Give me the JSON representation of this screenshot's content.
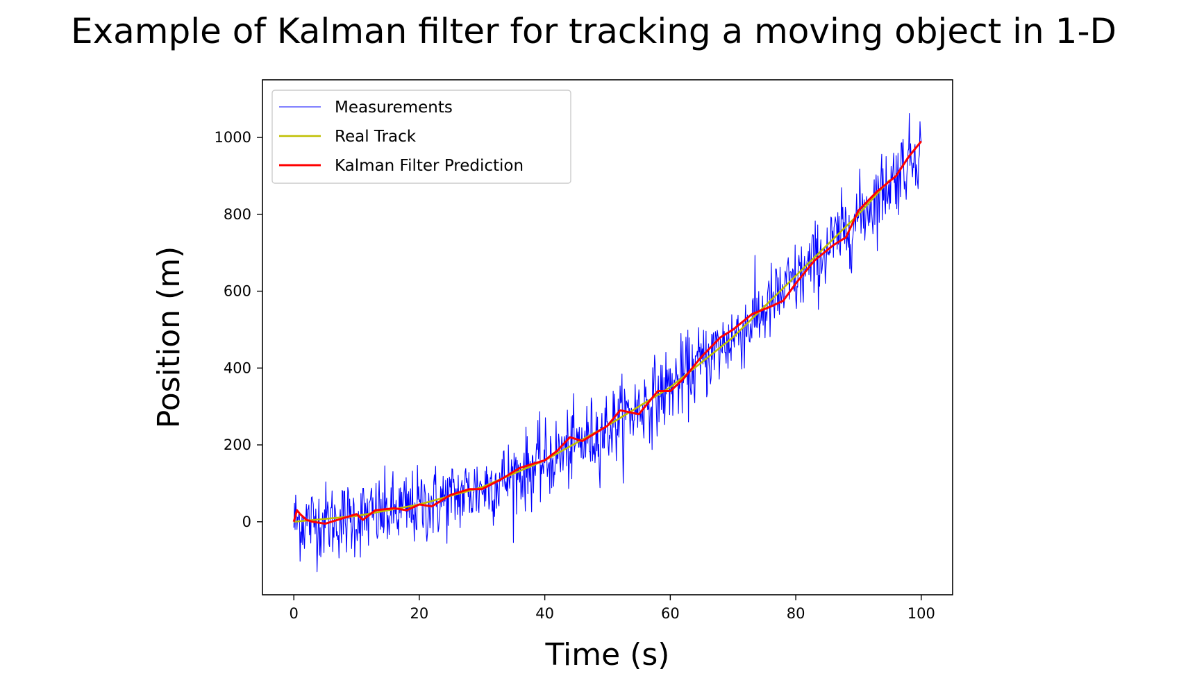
{
  "chart_data": {
    "type": "line",
    "title": "Example of Kalman filter for tracking a moving object in 1-D",
    "xlabel": "Time (s)",
    "ylabel": "Position (m)",
    "xlim": [
      -5,
      105
    ],
    "ylim": [
      -190,
      1150
    ],
    "xticks": [
      0,
      20,
      40,
      60,
      80,
      100
    ],
    "yticks": [
      0,
      200,
      400,
      600,
      800,
      1000
    ],
    "grid": false,
    "legend_position": "upper-left",
    "measurements_sampling": {
      "t_start": 0,
      "t_end": 100,
      "step": 0.1,
      "noise_std_approx": 50,
      "min_shown": -130,
      "max_shown": 1090
    },
    "series": [
      {
        "name": "Measurements",
        "color": "#0000ff",
        "style": "thin-noisy-line",
        "x": [
          0,
          1,
          2,
          3,
          5,
          8,
          10,
          11,
          12,
          15,
          20,
          25,
          30,
          35,
          40,
          45,
          50,
          55,
          60,
          65,
          70,
          75,
          80,
          85,
          90,
          95,
          99,
          100
        ],
        "y": [
          0,
          60,
          -40,
          40,
          0,
          20,
          10,
          -80,
          30,
          40,
          10,
          60,
          90,
          120,
          170,
          210,
          260,
          290,
          350,
          380,
          470,
          520,
          610,
          690,
          790,
          860,
          1000,
          960
        ]
      },
      {
        "name": "Real Track",
        "color": "#bfbf00",
        "style": "line",
        "x": [
          0,
          10,
          20,
          30,
          40,
          50,
          60,
          70,
          80,
          90,
          95
        ],
        "y": [
          0,
          15,
          45,
          90,
          160,
          250,
          350,
          480,
          640,
          800,
          890
        ]
      },
      {
        "name": "Kalman Filter Prediction",
        "color": "#ff0000",
        "style": "line",
        "x": [
          0,
          0.5,
          1,
          2,
          3,
          5,
          8,
          10,
          11,
          13,
          16,
          18,
          20,
          22,
          25,
          28,
          30,
          33,
          36,
          38,
          40,
          42,
          44,
          46,
          48,
          50,
          52,
          55,
          58,
          60,
          62,
          65,
          68,
          70,
          73,
          76,
          78,
          80,
          83,
          86,
          88,
          90,
          93,
          96,
          98,
          100
        ],
        "y": [
          0,
          30,
          20,
          5,
          0,
          -5,
          10,
          20,
          5,
          30,
          35,
          30,
          45,
          40,
          70,
          85,
          85,
          110,
          140,
          150,
          160,
          185,
          220,
          210,
          230,
          250,
          290,
          280,
          340,
          340,
          370,
          430,
          480,
          500,
          540,
          560,
          575,
          620,
          680,
          720,
          740,
          810,
          860,
          900,
          950,
          990
        ]
      }
    ]
  }
}
